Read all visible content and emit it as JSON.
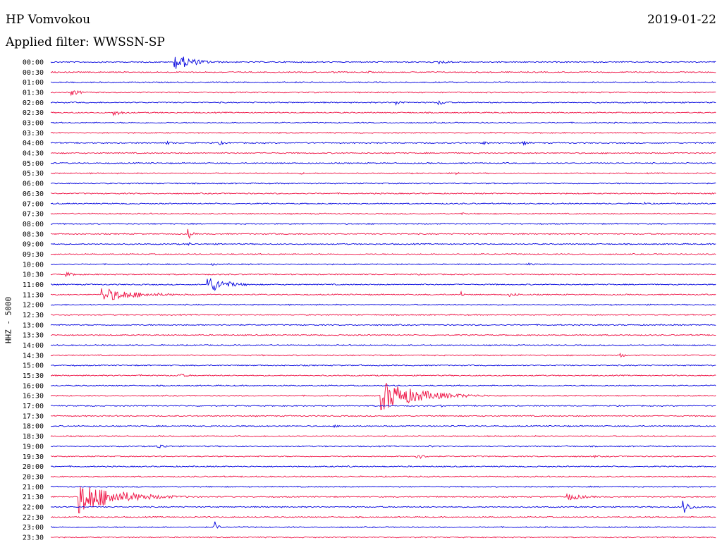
{
  "header": {
    "station": "HP Vomvokou",
    "date": "2019-01-22",
    "filter": "Applied filter: WWSSN-SP"
  },
  "chart_data": {
    "type": "line",
    "title": "HP Vomvokou",
    "ylabel": "HHZ - 5000",
    "colors": [
      "#0000dd",
      "#ee1144"
    ],
    "x_range_minutes": [
      0,
      30
    ],
    "rows": [
      "00:00",
      "00:30",
      "01:00",
      "01:30",
      "02:00",
      "02:30",
      "03:00",
      "03:30",
      "04:00",
      "04:30",
      "05:00",
      "05:30",
      "06:00",
      "06:30",
      "07:00",
      "07:30",
      "08:00",
      "08:30",
      "09:00",
      "09:30",
      "10:00",
      "10:30",
      "11:00",
      "11:30",
      "12:00",
      "12:30",
      "13:00",
      "13:30",
      "14:00",
      "14:30",
      "15:00",
      "15:30",
      "16:00",
      "16:30",
      "17:00",
      "17:30",
      "18:00",
      "18:30",
      "19:00",
      "19:30",
      "20:00",
      "20:30",
      "21:00",
      "21:30",
      "22:00",
      "22:30",
      "23:00",
      "23:30"
    ],
    "events": [
      {
        "row": 0,
        "minute": 5.6,
        "amplitude": 12,
        "duration": 1.5
      },
      {
        "row": 0,
        "minute": 17.5,
        "amplitude": 3,
        "duration": 1
      },
      {
        "row": 1,
        "minute": 12.8,
        "amplitude": 2,
        "duration": 0.4
      },
      {
        "row": 1,
        "minute": 14.3,
        "amplitude": 2,
        "duration": 0.4
      },
      {
        "row": 3,
        "minute": 0.9,
        "amplitude": 5,
        "duration": 0.8
      },
      {
        "row": 4,
        "minute": 15.5,
        "amplitude": 4,
        "duration": 0.7
      },
      {
        "row": 4,
        "minute": 17.5,
        "amplitude": 4,
        "duration": 0.7
      },
      {
        "row": 5,
        "minute": 2.8,
        "amplitude": 5,
        "duration": 0.8
      },
      {
        "row": 8,
        "minute": 5.2,
        "amplitude": 3,
        "duration": 0.6
      },
      {
        "row": 8,
        "minute": 7.6,
        "amplitude": 3,
        "duration": 0.6
      },
      {
        "row": 8,
        "minute": 19.5,
        "amplitude": 3,
        "duration": 0.6
      },
      {
        "row": 8,
        "minute": 21.3,
        "amplitude": 3,
        "duration": 0.6
      },
      {
        "row": 10,
        "minute": 27.2,
        "amplitude": 1,
        "duration": 0.4
      },
      {
        "row": 11,
        "minute": 11.3,
        "amplitude": 1.5,
        "duration": 0.5
      },
      {
        "row": 11,
        "minute": 18.3,
        "amplitude": 3,
        "duration": 0.2
      },
      {
        "row": 14,
        "minute": 26.8,
        "amplitude": 2,
        "duration": 0.5
      },
      {
        "row": 15,
        "minute": 18.5,
        "amplitude": 2,
        "duration": 0.4
      },
      {
        "row": 16,
        "minute": 4.8,
        "amplitude": 2,
        "duration": 0.3
      },
      {
        "row": 17,
        "minute": 6.2,
        "amplitude": 8,
        "duration": 0.3
      },
      {
        "row": 18,
        "minute": 6.2,
        "amplitude": 3,
        "duration": 0.3
      },
      {
        "row": 20,
        "minute": 7.3,
        "amplitude": 2,
        "duration": 0.6
      },
      {
        "row": 20,
        "minute": 21.5,
        "amplitude": 2,
        "duration": 0.6
      },
      {
        "row": 21,
        "minute": 0.7,
        "amplitude": 3,
        "duration": 1
      },
      {
        "row": 22,
        "minute": 7.1,
        "amplitude": 12,
        "duration": 1.5
      },
      {
        "row": 23,
        "minute": 2.3,
        "amplitude": 10,
        "duration": 3
      },
      {
        "row": 23,
        "minute": 18.5,
        "amplitude": 5,
        "duration": 0.2
      },
      {
        "row": 23,
        "minute": 20.7,
        "amplitude": 3,
        "duration": 1
      },
      {
        "row": 29,
        "minute": 25.7,
        "amplitude": 4,
        "duration": 0.3
      },
      {
        "row": 30,
        "minute": 13.9,
        "amplitude": 2,
        "duration": 0.5
      },
      {
        "row": 31,
        "minute": 5.7,
        "amplitude": 3,
        "duration": 1
      },
      {
        "row": 31,
        "minute": 4.0,
        "amplitude": 2,
        "duration": 0.3
      },
      {
        "row": 33,
        "minute": 14.9,
        "amplitude": 22,
        "duration": 3
      },
      {
        "row": 34,
        "minute": 17.6,
        "amplitude": 2,
        "duration": 0.5
      },
      {
        "row": 36,
        "minute": 12.8,
        "amplitude": 2,
        "duration": 0.5
      },
      {
        "row": 38,
        "minute": 4.8,
        "amplitude": 4,
        "duration": 0.8
      },
      {
        "row": 38,
        "minute": 17.1,
        "amplitude": 2,
        "duration": 0.5
      },
      {
        "row": 38,
        "minute": 23.3,
        "amplitude": 2,
        "duration": 0.5
      },
      {
        "row": 39,
        "minute": 16.5,
        "amplitude": 4,
        "duration": 0.8
      },
      {
        "row": 39,
        "minute": 24.5,
        "amplitude": 2,
        "duration": 0.5
      },
      {
        "row": 40,
        "minute": 13.4,
        "amplitude": 2,
        "duration": 0.4
      },
      {
        "row": 43,
        "minute": 1.3,
        "amplitude": 24,
        "duration": 3
      },
      {
        "row": 43,
        "minute": 23.3,
        "amplitude": 5,
        "duration": 1.5
      },
      {
        "row": 44,
        "minute": 28.5,
        "amplitude": 10,
        "duration": 0.6
      },
      {
        "row": 46,
        "minute": 7.4,
        "amplitude": 8,
        "duration": 0.3
      }
    ]
  }
}
